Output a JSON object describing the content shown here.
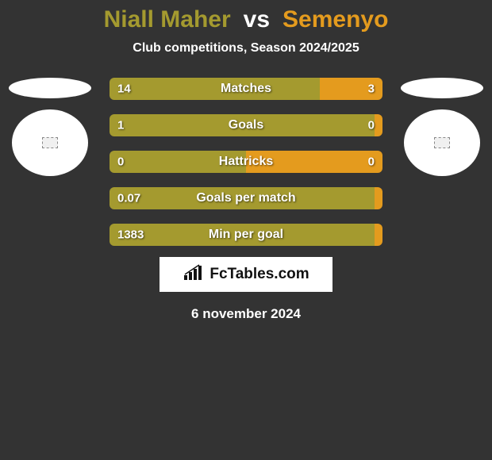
{
  "title": {
    "player1": "Niall Maher",
    "vs": "vs",
    "player2": "Semenyo",
    "player1_color": "#a49a2f",
    "player2_color": "#e49b1e"
  },
  "subtitle": "Club competitions, Season 2024/2025",
  "colors": {
    "background": "#333333",
    "left_bar": "#a49a2f",
    "right_bar": "#e49b1e",
    "text": "#ffffff",
    "badge_bg": "#ffffff",
    "badge_text": "#111111"
  },
  "bars": [
    {
      "label": "Matches",
      "left_val": "14",
      "right_val": "3",
      "left_pct": 77,
      "right_pct": 23
    },
    {
      "label": "Goals",
      "left_val": "1",
      "right_val": "0",
      "left_pct": 97,
      "right_pct": 3
    },
    {
      "label": "Hattricks",
      "left_val": "0",
      "right_val": "0",
      "left_pct": 50,
      "right_pct": 50
    },
    {
      "label": "Goals per match",
      "left_val": "0.07",
      "right_val": "",
      "left_pct": 97,
      "right_pct": 3
    },
    {
      "label": "Min per goal",
      "left_val": "1383",
      "right_val": "",
      "left_pct": 97,
      "right_pct": 3
    }
  ],
  "bar_style": {
    "track_width": 344,
    "track_height": 28,
    "border_radius": 6,
    "label_fontsize": 16,
    "value_fontsize": 15,
    "gap": 18
  },
  "avatars": {
    "flat_ellipse": {
      "w": 104,
      "h": 26,
      "bg": "#ffffff"
    },
    "circle": {
      "w": 96,
      "h": 84,
      "bg": "#ffffff"
    }
  },
  "badge": {
    "text": "FcTables.com"
  },
  "date": "6 november 2024"
}
